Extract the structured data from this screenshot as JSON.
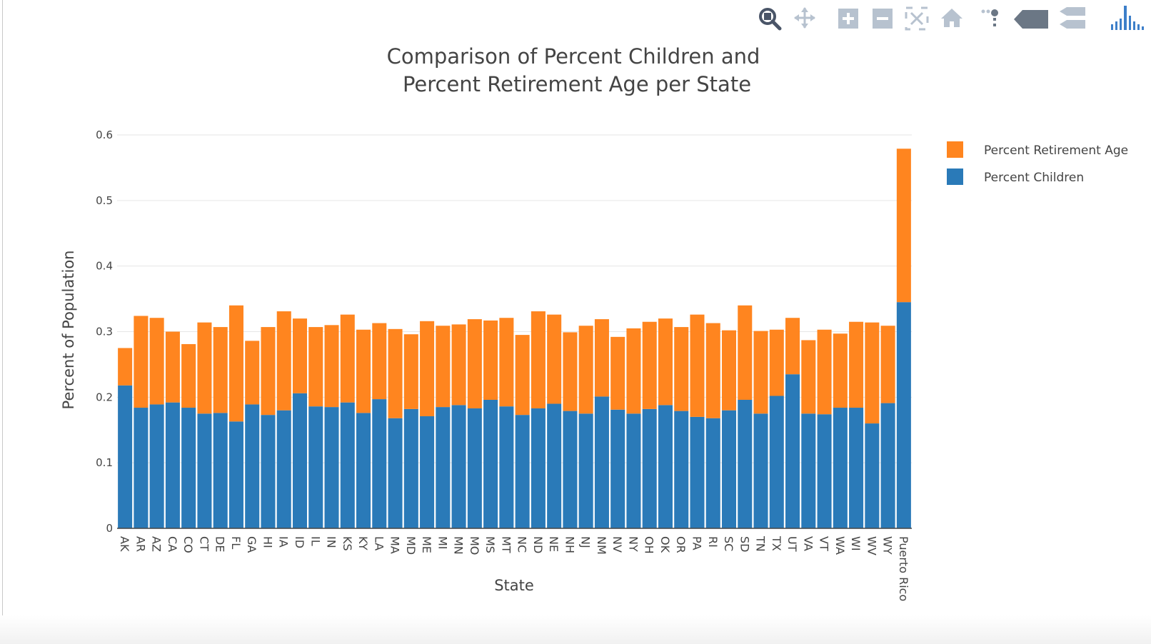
{
  "modebar": {
    "buttons": [
      {
        "name": "zoom-icon",
        "color": "#4a5568"
      },
      {
        "name": "pan-icon",
        "color": "#b7c2cf"
      },
      {
        "name": "zoom-in-icon",
        "color": "#b7c2cf"
      },
      {
        "name": "zoom-out-icon",
        "color": "#b7c2cf"
      },
      {
        "name": "autoscale-icon",
        "color": "#b7c2cf"
      },
      {
        "name": "reset-axes-icon",
        "color": "#b7c2cf"
      },
      {
        "name": "spike-lines-icon",
        "color": "#b7c2cf"
      },
      {
        "name": "hover-closest-icon",
        "color": "#6b7785"
      },
      {
        "name": "hover-compare-icon",
        "color": "#b7c2cf"
      },
      {
        "name": "plotly-logo-icon",
        "color": "#3d7fc9"
      }
    ]
  },
  "chart_data": {
    "type": "bar",
    "barmode": "stack",
    "title_lines": [
      "Comparison of Percent Children and",
      "Percent Retirement Age per State"
    ],
    "xlabel": "State",
    "ylabel": "Percent of Population",
    "ylim": [
      0,
      0.6
    ],
    "yticks": [
      0,
      0.1,
      0.2,
      0.3,
      0.4,
      0.5,
      0.6
    ],
    "ytick_labels": [
      "0",
      "0.1",
      "0.2",
      "0.3",
      "0.4",
      "0.5",
      "0.6"
    ],
    "grid": true,
    "legend_position": "top-right",
    "categories": [
      "AK",
      "AR",
      "AZ",
      "CA",
      "CO",
      "CT",
      "DE",
      "FL",
      "GA",
      "HI",
      "IA",
      "ID",
      "IL",
      "IN",
      "KS",
      "KY",
      "LA",
      "MA",
      "MD",
      "ME",
      "MI",
      "MN",
      "MO",
      "MS",
      "MT",
      "NC",
      "ND",
      "NE",
      "NH",
      "NJ",
      "NM",
      "NV",
      "NY",
      "OH",
      "OK",
      "OR",
      "PA",
      "RI",
      "SC",
      "SD",
      "TN",
      "TX",
      "UT",
      "VA",
      "VT",
      "WA",
      "WI",
      "WV",
      "WY",
      "Puerto Rico"
    ],
    "series": [
      {
        "name": "Percent Children",
        "color": "#2a7ab8",
        "values": [
          0.218,
          0.184,
          0.189,
          0.192,
          0.184,
          0.175,
          0.176,
          0.163,
          0.189,
          0.173,
          0.18,
          0.206,
          0.186,
          0.185,
          0.192,
          0.176,
          0.197,
          0.168,
          0.182,
          0.171,
          0.185,
          0.188,
          0.183,
          0.196,
          0.186,
          0.173,
          0.183,
          0.19,
          0.179,
          0.175,
          0.201,
          0.181,
          0.175,
          0.182,
          0.188,
          0.179,
          0.17,
          0.168,
          0.18,
          0.196,
          0.175,
          0.202,
          0.235,
          0.175,
          0.174,
          0.184,
          0.184,
          0.16,
          0.191,
          0.345
        ]
      },
      {
        "name": "Percent Retirement Age",
        "color": "#ff851f",
        "values": [
          0.057,
          0.14,
          0.132,
          0.108,
          0.097,
          0.139,
          0.131,
          0.177,
          0.097,
          0.134,
          0.151,
          0.114,
          0.121,
          0.125,
          0.134,
          0.127,
          0.116,
          0.136,
          0.114,
          0.145,
          0.124,
          0.123,
          0.136,
          0.121,
          0.135,
          0.122,
          0.148,
          0.136,
          0.12,
          0.134,
          0.118,
          0.111,
          0.13,
          0.133,
          0.132,
          0.128,
          0.156,
          0.145,
          0.122,
          0.144,
          0.126,
          0.101,
          0.086,
          0.112,
          0.129,
          0.113,
          0.131,
          0.154,
          0.118,
          0.234
        ]
      }
    ],
    "legend_order": [
      "Percent Retirement Age",
      "Percent Children"
    ]
  }
}
